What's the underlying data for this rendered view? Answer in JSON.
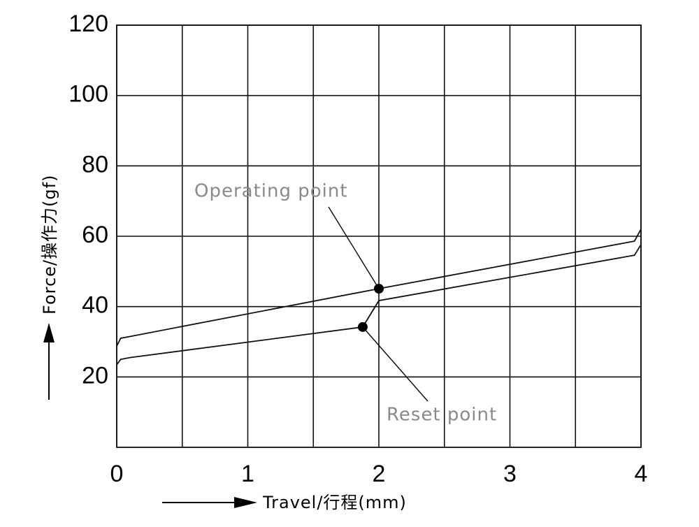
{
  "chart_data": {
    "type": "line",
    "xlabel": "Travel/行程(mm)",
    "ylabel": "Force/操作力(gf)",
    "xlim": [
      0,
      4
    ],
    "xticks": [
      0,
      1,
      2,
      3,
      4
    ],
    "xminor_ticks": [
      0.5,
      1.5,
      2.5,
      3.5
    ],
    "ylim": [
      0,
      120
    ],
    "yticks": [
      20,
      40,
      60,
      80,
      100,
      120
    ],
    "grid": true,
    "series": [
      {
        "color": "#111111",
        "x": [
          0,
          0.03,
          0.1,
          2.0,
          3.95,
          4
        ],
        "values": [
          28.8,
          31,
          31.5,
          45.1,
          58.6,
          62
        ]
      },
      {
        "color": "#111111",
        "x": [
          0,
          0.03,
          0.1,
          1.877,
          2.0,
          3.95,
          4
        ],
        "values": [
          23.5,
          25,
          25.5,
          34.2,
          41.7,
          54.6,
          57.6
        ]
      }
    ],
    "points": [
      {
        "label": "Operating point",
        "x": 2.0,
        "y": 45.1
      },
      {
        "label": "Reset point",
        "x": 1.877,
        "y": 34.2
      }
    ]
  }
}
